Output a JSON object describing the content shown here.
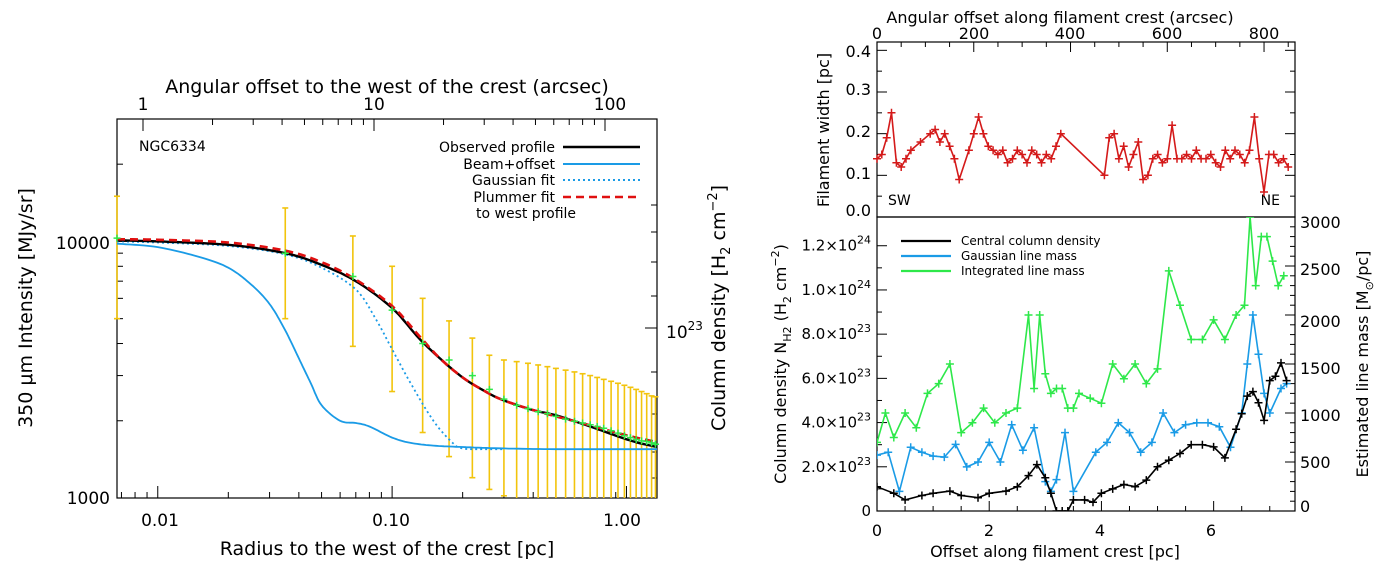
{
  "colors": {
    "observed": "#000000",
    "beam": "#1a9be6",
    "gaussian": "#1a9be6",
    "plummer": "#e01010",
    "errorbar": "#f2c40c",
    "points": "#2ee84a",
    "width": "#d41a1a",
    "central": "#000000",
    "gauss_mass": "#1a9be6",
    "integ_mass": "#2ee84a"
  },
  "left": {
    "top_axis_label": "Angular offset to the west of the crest (arcsec)",
    "top_ticks": [
      "1",
      "10",
      "100"
    ],
    "bottom_axis_label": "Radius to the west of the crest [pc]",
    "bottom_ticks": [
      "0.01",
      "0.10",
      "1.00"
    ],
    "left_axis_label": "350 μm Intensity [MJy/sr]",
    "left_ticks": [
      "1000",
      "10000"
    ],
    "right_axis_label_main": "Column density [H",
    "right_axis_label_sub": "2",
    "right_axis_label_unit": " cm",
    "right_axis_label_sup": "−2",
    "right_axis_label_end": "]",
    "right_tick_base": "10",
    "right_tick_exp": "23",
    "panel_label": "NGC6334",
    "legend": [
      "Observed profile",
      "Beam+offset",
      "Gaussian fit",
      "Plummer fit",
      "to west profile"
    ]
  },
  "right_top": {
    "top_axis_label": "Angular offset along filament crest (arcsec)",
    "top_ticks": [
      "0",
      "200",
      "400",
      "600",
      "800"
    ],
    "y_axis_label": "Filament width [pc]",
    "y_ticks": [
      "0.0",
      "0.1",
      "0.2",
      "0.3",
      "0.4"
    ],
    "label_left": "SW",
    "label_right": "NE"
  },
  "right_bottom": {
    "x_axis_label": "Offset along filament crest [pc]",
    "x_ticks": [
      "0",
      "2",
      "4",
      "6"
    ],
    "y_left_label_main": "Column density N",
    "y_left_label_sub": "H2",
    "y_left_label_unit": " (H",
    "y_left_label_sub2": "2",
    "y_left_label_unit2": " cm",
    "y_left_label_sup": "−2",
    "y_left_label_end": ")",
    "y_left_ticks": [
      {
        "m": "0",
        "e": ""
      },
      {
        "m": "2.0×10",
        "e": "23"
      },
      {
        "m": "4.0×10",
        "e": "23"
      },
      {
        "m": "6.0×10",
        "e": "23"
      },
      {
        "m": "8.0×10",
        "e": "23"
      },
      {
        "m": "1.0×10",
        "e": "24"
      },
      {
        "m": "1.2×10",
        "e": "24"
      }
    ],
    "y_right_label_main": "Estimated line mass [M",
    "y_right_label_sub": "⊙",
    "y_right_label_end": "/pc]",
    "y_right_ticks": [
      "0",
      "500",
      "1000",
      "1500",
      "2000",
      "2500",
      "3000"
    ],
    "legend": [
      "Central column density",
      "Gaussian line mass",
      "Integrated line mass"
    ]
  },
  "chart_data": [
    {
      "type": "line",
      "xscale": "log",
      "yscale": "log",
      "xlim": [
        0.0067,
        1.35
      ],
      "ylim": [
        1000,
        30000
      ],
      "xlabel": "Radius to the west of the crest [pc]",
      "ylabel": "350 μm Intensity [MJy/sr]",
      "x2label": "Angular offset to the west of the crest (arcsec)",
      "y2label": "Column density [H2 cm-2]",
      "series": [
        {
          "name": "Observed profile",
          "x": [
            0.0067,
            0.01,
            0.02,
            0.035,
            0.05,
            0.07,
            0.1,
            0.13,
            0.16,
            0.2,
            0.25,
            0.3,
            0.4,
            0.5,
            0.7,
            0.9,
            1.1,
            1.35
          ],
          "y": [
            10100,
            10000,
            9700,
            9000,
            8100,
            7000,
            5500,
            4200,
            3500,
            2950,
            2600,
            2400,
            2200,
            2100,
            1900,
            1750,
            1650,
            1580
          ]
        },
        {
          "name": "Beam+offset",
          "x": [
            0.0067,
            0.01,
            0.015,
            0.02,
            0.025,
            0.03,
            0.035,
            0.04,
            0.045,
            0.05,
            0.06,
            0.07,
            0.08,
            0.1,
            0.12,
            0.15,
            0.2,
            0.3,
            0.5,
            1.0,
            1.35
          ],
          "y": [
            9800,
            9500,
            8700,
            7900,
            6800,
            5700,
            4500,
            3500,
            2800,
            2300,
            2000,
            1960,
            1900,
            1720,
            1640,
            1600,
            1580,
            1560,
            1550,
            1550,
            1550
          ]
        },
        {
          "name": "Gaussian fit",
          "x": [
            0.0067,
            0.01,
            0.02,
            0.035,
            0.05,
            0.07,
            0.085,
            0.1,
            0.12,
            0.15,
            0.18,
            0.2,
            0.25,
            0.3
          ],
          "y": [
            10000,
            9900,
            9600,
            8900,
            7900,
            6500,
            5000,
            3800,
            2800,
            2000,
            1650,
            1560,
            1550,
            1550
          ]
        },
        {
          "name": "Plummer fit",
          "x": [
            0.0067,
            0.01,
            0.02,
            0.035,
            0.05,
            0.07,
            0.1,
            0.13,
            0.16,
            0.2,
            0.25,
            0.3,
            0.4,
            0.5,
            0.7,
            0.9,
            1.1,
            1.35
          ],
          "y": [
            10200,
            10150,
            9900,
            9200,
            8300,
            7100,
            5600,
            4300,
            3500,
            2950,
            2600,
            2400,
            2200,
            2080,
            1920,
            1800,
            1720,
            1650
          ]
        }
      ],
      "errorbars": {
        "x": [
          0.0067,
          0.035,
          0.068,
          0.1,
          0.135,
          0.175,
          0.22,
          0.26,
          0.3,
          0.34,
          0.38,
          0.42,
          0.46,
          0.5,
          0.55,
          0.6,
          0.65,
          0.7,
          0.75,
          0.8,
          0.86,
          0.92,
          0.98,
          1.04,
          1.1,
          1.16,
          1.22,
          1.28,
          1.33
        ],
        "y": [
          10300,
          9000,
          7300,
          5400,
          4000,
          3450,
          3000,
          2650,
          2430,
          2300,
          2230,
          2170,
          2130,
          2080,
          2030,
          1990,
          1960,
          1930,
          1900,
          1870,
          1830,
          1790,
          1750,
          1720,
          1690,
          1670,
          1660,
          1640,
          1620
        ],
        "err_hi": [
          15000,
          13500,
          10500,
          8000,
          6000,
          4900,
          4200,
          3600,
          3450,
          3400,
          3350,
          3300,
          3250,
          3200,
          3150,
          3100,
          3050,
          3000,
          2950,
          2900,
          2850,
          2800,
          2750,
          2700,
          2650,
          2600,
          2550,
          2500,
          2480
        ],
        "err_lo": [
          5000,
          5000,
          3900,
          2600,
          1800,
          1450,
          1200,
          1080,
          1020,
          980,
          960,
          950,
          940,
          930,
          920,
          910,
          900,
          900,
          900,
          900,
          900,
          900,
          900,
          900,
          900,
          900,
          900,
          900,
          900
        ]
      }
    },
    {
      "type": "line",
      "xlim": [
        0,
        864
      ],
      "ylim": [
        0.0,
        0.42
      ],
      "xlabel": "Angular offset along filament crest (arcsec)",
      "ylabel": "Filament width [pc]",
      "series": [
        {
          "name": "Filament width",
          "x": [
            0,
            10,
            20,
            30,
            40,
            50,
            60,
            70,
            90,
            110,
            120,
            130,
            140,
            150,
            160,
            170,
            190,
            200,
            210,
            220,
            230,
            240,
            250,
            260,
            270,
            280,
            290,
            300,
            310,
            320,
            330,
            340,
            350,
            360,
            370,
            380,
            470,
            480,
            490,
            500,
            510,
            520,
            530,
            540,
            550,
            560,
            570,
            580,
            590,
            600,
            610,
            620,
            630,
            640,
            650,
            660,
            670,
            680,
            690,
            700,
            710,
            720,
            730,
            740,
            750,
            760,
            770,
            780,
            790,
            800,
            810,
            820,
            830,
            840,
            850
          ],
          "y": [
            0.14,
            0.15,
            0.19,
            0.25,
            0.13,
            0.12,
            0.14,
            0.16,
            0.18,
            0.2,
            0.21,
            0.18,
            0.2,
            0.17,
            0.14,
            0.09,
            0.16,
            0.2,
            0.24,
            0.2,
            0.17,
            0.16,
            0.15,
            0.16,
            0.13,
            0.14,
            0.16,
            0.15,
            0.13,
            0.16,
            0.15,
            0.13,
            0.15,
            0.14,
            0.17,
            0.2,
            0.1,
            0.19,
            0.2,
            0.14,
            0.17,
            0.12,
            0.15,
            0.18,
            0.09,
            0.1,
            0.14,
            0.15,
            0.13,
            0.14,
            0.22,
            0.14,
            0.14,
            0.15,
            0.14,
            0.16,
            0.14,
            0.14,
            0.15,
            0.13,
            0.12,
            0.16,
            0.14,
            0.16,
            0.15,
            0.13,
            0.16,
            0.24,
            0.14,
            0.06,
            0.15,
            0.15,
            0.13,
            0.14,
            0.12
          ]
        }
      ]
    },
    {
      "type": "line",
      "xlim": [
        0,
        7.45
      ],
      "ylim": [
        0,
        1.33e+24
      ],
      "y2lim": [
        0,
        3000
      ],
      "xlabel": "Offset along filament crest [pc]",
      "ylabel": "Column density N_H2 (H2 cm-2)",
      "y2label": "Estimated line mass [Msun/pc]",
      "series": [
        {
          "name": "Central column density",
          "axis": "left",
          "x": [
            0,
            0.3,
            0.5,
            0.8,
            1.0,
            1.3,
            1.5,
            1.8,
            2.0,
            2.3,
            2.5,
            2.7,
            2.85,
            3.0,
            3.1,
            3.2,
            3.3,
            3.4,
            3.5,
            3.7,
            3.85,
            4.0,
            4.2,
            4.4,
            4.6,
            4.8,
            5.0,
            5.2,
            5.4,
            5.6,
            5.8,
            6.0,
            6.2,
            6.4,
            6.5,
            6.6,
            6.7,
            6.8,
            6.9,
            7.0,
            7.1,
            7.2,
            7.3
          ],
          "y": [
            1.1e+23,
            8e+22,
            5e+22,
            7e+22,
            8e+22,
            9e+22,
            7e+22,
            6e+22,
            8e+22,
            9e+22,
            1.1e+23,
            1.6e+23,
            2.1e+23,
            1.5e+23,
            8e+22,
            0,
            0,
            0,
            5e+22,
            5e+22,
            4e+22,
            8e+22,
            1e+23,
            1.2e+23,
            1.1e+23,
            1.4e+23,
            2e+23,
            2.3e+23,
            2.6e+23,
            3e+23,
            3e+23,
            2.9e+23,
            2.4e+23,
            3.7e+23,
            4.4e+23,
            5.2e+23,
            5.4e+23,
            4.9e+23,
            4.1e+23,
            5.9e+23,
            6.1e+23,
            6.7e+23,
            5.9e+23
          ]
        },
        {
          "name": "Gaussian line mass",
          "axis": "right",
          "x": [
            0,
            0.2,
            0.4,
            0.6,
            0.8,
            1.0,
            1.2,
            1.4,
            1.6,
            1.8,
            2.0,
            2.2,
            2.4,
            2.6,
            2.8,
            3.0,
            3.1,
            3.2,
            3.35,
            3.5,
            3.9,
            4.1,
            4.3,
            4.5,
            4.7,
            4.9,
            5.1,
            5.3,
            5.5,
            5.7,
            5.9,
            6.1,
            6.3,
            6.5,
            6.6,
            6.7,
            6.8,
            6.9,
            7.0,
            7.2,
            7.3
          ],
          "y": [
            570,
            600,
            200,
            650,
            600,
            560,
            550,
            680,
            450,
            500,
            700,
            500,
            880,
            620,
            850,
            300,
            200,
            320,
            800,
            200,
            600,
            700,
            900,
            800,
            600,
            700,
            1000,
            800,
            880,
            900,
            900,
            860,
            650,
            1000,
            1500,
            2000,
            1600,
            1200,
            1000,
            1250,
            1300
          ]
        },
        {
          "name": "Integrated line mass",
          "axis": "right",
          "x": [
            0,
            0.15,
            0.3,
            0.5,
            0.7,
            0.9,
            1.1,
            1.3,
            1.5,
            1.7,
            1.9,
            2.1,
            2.3,
            2.5,
            2.7,
            2.8,
            2.9,
            3.0,
            3.1,
            3.2,
            3.3,
            3.4,
            3.5,
            3.6,
            3.8,
            4.0,
            4.2,
            4.4,
            4.6,
            4.8,
            5.0,
            5.2,
            5.4,
            5.6,
            5.8,
            6.0,
            6.2,
            6.4,
            6.55,
            6.65,
            6.75,
            6.85,
            6.95,
            7.05,
            7.15,
            7.25
          ],
          "y": [
            700,
            1000,
            750,
            1000,
            850,
            1200,
            1300,
            1500,
            800,
            900,
            1050,
            900,
            1000,
            1050,
            2000,
            1250,
            2000,
            1400,
            1200,
            1250,
            1250,
            1050,
            1050,
            1200,
            1150,
            1100,
            1500,
            1350,
            1500,
            1300,
            1450,
            2450,
            2100,
            1750,
            1750,
            1950,
            1750,
            2000,
            2100,
            3000,
            2300,
            2800,
            2800,
            2550,
            2300,
            2400
          ]
        }
      ]
    }
  ]
}
